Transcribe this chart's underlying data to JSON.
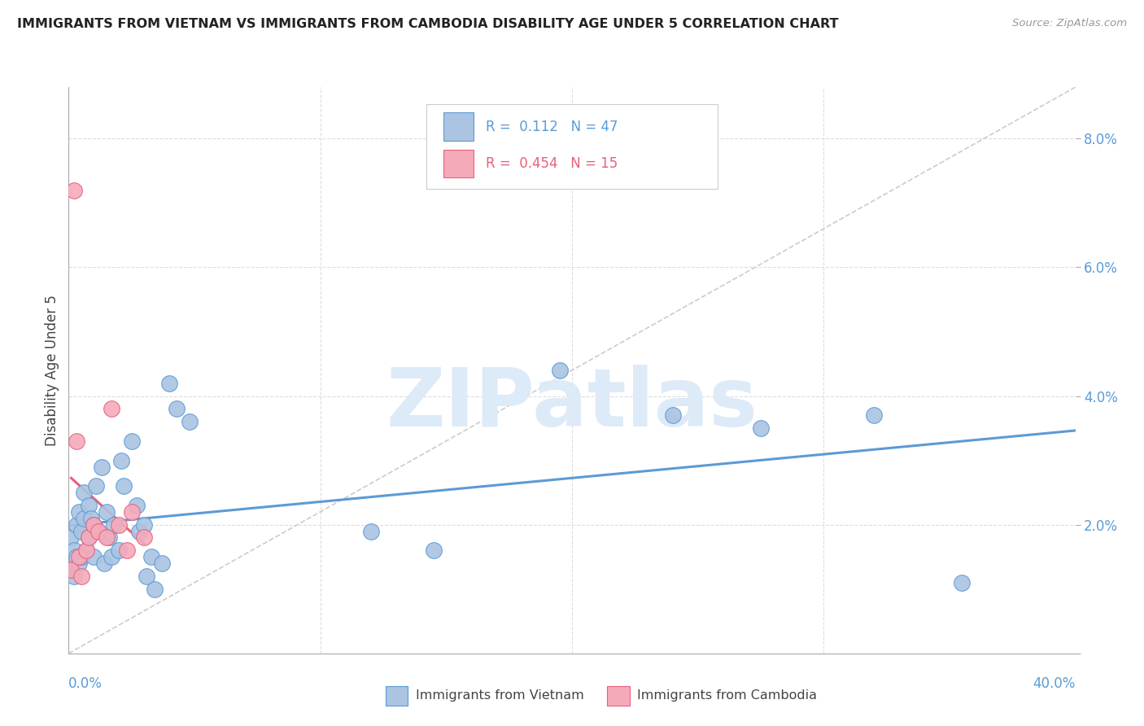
{
  "title": "IMMIGRANTS FROM VIETNAM VS IMMIGRANTS FROM CAMBODIA DISABILITY AGE UNDER 5 CORRELATION CHART",
  "source": "Source: ZipAtlas.com",
  "ylabel": "Disability Age Under 5",
  "xlim": [
    0.0,
    0.4
  ],
  "ylim": [
    0.0,
    0.088
  ],
  "ytick_values": [
    0.0,
    0.02,
    0.04,
    0.06,
    0.08
  ],
  "ytick_labels": [
    "",
    "2.0%",
    "4.0%",
    "6.0%",
    "8.0%"
  ],
  "vietnam_R": 0.112,
  "vietnam_N": 47,
  "cambodia_R": 0.454,
  "cambodia_N": 15,
  "vietnam_color": "#aac4e2",
  "cambodia_color": "#f5aaba",
  "vietnam_line_color": "#5b9bd5",
  "cambodia_line_color": "#e8607a",
  "diagonal_color": "#cccccc",
  "watermark_color": "#ddeaf8",
  "vietnam_x": [
    0.001,
    0.001,
    0.002,
    0.002,
    0.003,
    0.003,
    0.004,
    0.004,
    0.005,
    0.005,
    0.006,
    0.006,
    0.007,
    0.008,
    0.008,
    0.009,
    0.01,
    0.01,
    0.011,
    0.012,
    0.013,
    0.014,
    0.015,
    0.016,
    0.017,
    0.018,
    0.02,
    0.021,
    0.022,
    0.025,
    0.027,
    0.028,
    0.03,
    0.031,
    0.033,
    0.034,
    0.037,
    0.04,
    0.043,
    0.048,
    0.12,
    0.145,
    0.195,
    0.24,
    0.275,
    0.32,
    0.355
  ],
  "vietnam_y": [
    0.013,
    0.018,
    0.012,
    0.016,
    0.015,
    0.02,
    0.014,
    0.022,
    0.019,
    0.015,
    0.021,
    0.025,
    0.016,
    0.023,
    0.018,
    0.021,
    0.015,
    0.02,
    0.026,
    0.019,
    0.029,
    0.014,
    0.022,
    0.018,
    0.015,
    0.02,
    0.016,
    0.03,
    0.026,
    0.033,
    0.023,
    0.019,
    0.02,
    0.012,
    0.015,
    0.01,
    0.014,
    0.042,
    0.038,
    0.036,
    0.019,
    0.016,
    0.044,
    0.037,
    0.035,
    0.037,
    0.011
  ],
  "cambodia_x": [
    0.001,
    0.002,
    0.003,
    0.004,
    0.005,
    0.007,
    0.008,
    0.01,
    0.012,
    0.015,
    0.017,
    0.02,
    0.023,
    0.025,
    0.03
  ],
  "cambodia_y": [
    0.013,
    0.072,
    0.033,
    0.015,
    0.012,
    0.016,
    0.018,
    0.02,
    0.019,
    0.018,
    0.038,
    0.02,
    0.016,
    0.022,
    0.018
  ]
}
